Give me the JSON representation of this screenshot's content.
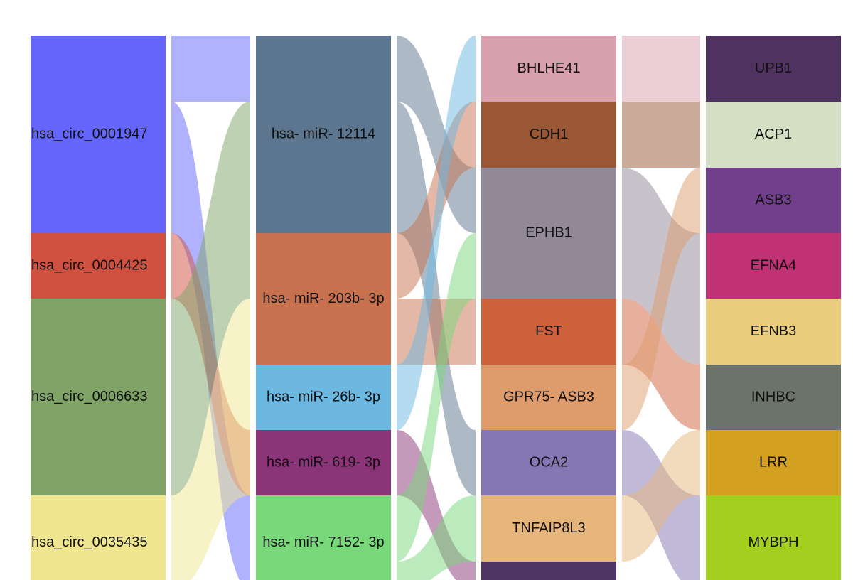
{
  "columns": [
    {
      "nodes": [
        {
          "label": "hsa_circ_0001947",
          "color": "#6466fb"
        },
        {
          "label": "hsa_circ_0004425",
          "color": "#d05040"
        },
        {
          "label": "hsa_circ_0006633",
          "color": "#80a468"
        },
        {
          "label": "hsa_circ_0035435",
          "color": "#f0e68f"
        }
      ]
    },
    {
      "nodes": [
        {
          "label": "hsa- miR- 12114",
          "color": "#5b768e"
        },
        {
          "label": "hsa- miR- 203b- 3p",
          "color": "#c8714e"
        },
        {
          "label": "hsa- miR- 26b- 3p",
          "color": "#6cb8e1"
        },
        {
          "label": "hsa- miR- 619- 3p",
          "color": "#8a3578"
        },
        {
          "label": "hsa- miR- 7152- 3p",
          "color": "#78d87a"
        }
      ]
    },
    {
      "nodes": [
        {
          "label": "BHLHE41",
          "color": "#d9a0ae"
        },
        {
          "label": "CDH1",
          "color": "#9a5736"
        },
        {
          "label": "EPHB1",
          "color": "#918898"
        },
        {
          "label": "FST",
          "color": "#cd613c"
        },
        {
          "label": "GPR75- ASB3",
          "color": "#de9b6c"
        },
        {
          "label": "OCA2",
          "color": "#8576b4"
        },
        {
          "label": "TNFAIP8L3",
          "color": "#e6b57c"
        },
        {
          "color": "#4e3563"
        }
      ]
    },
    {
      "nodes": [
        {
          "label": "UPB1",
          "color": "#4f325f"
        },
        {
          "label": "ACP1",
          "color": "#d3e0c4"
        },
        {
          "label": "ASB3",
          "color": "#723f8c"
        },
        {
          "label": "EFNA4",
          "color": "#c03274"
        },
        {
          "label": "EFNB3",
          "color": "#e9cc7c"
        },
        {
          "label": "INHBC",
          "color": "#6c7469"
        },
        {
          "label": "LRR",
          "color": "#d3a020"
        },
        {
          "label": "MYBPH",
          "color": "#a5cf1f"
        }
      ]
    }
  ]
}
